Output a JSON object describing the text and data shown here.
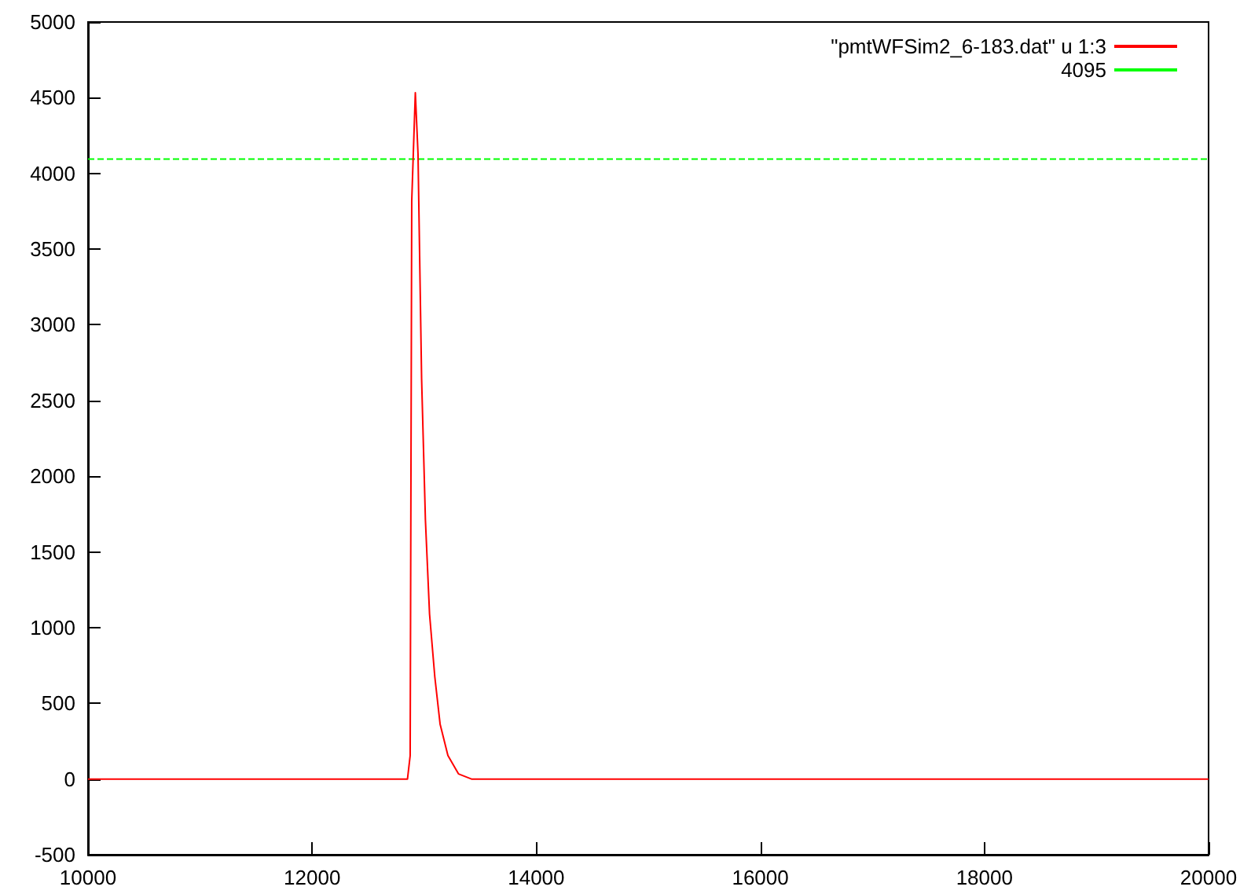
{
  "chart_data": {
    "type": "line",
    "series": [
      {
        "name": "\"pmtWFSim2_6-183.dat\" u 1:3",
        "color": "#ff0000",
        "x": [
          10000,
          10500,
          11000,
          11500,
          12000,
          12500,
          12851,
          12875,
          12889,
          12921,
          12945,
          12977,
          13011,
          13048,
          13095,
          13142,
          13212,
          13306,
          13422,
          14000,
          14500,
          15000,
          15500,
          16000,
          16500,
          17000,
          17500,
          18000,
          18500,
          19000,
          19500,
          20000
        ],
        "values": [
          0,
          0,
          0,
          0,
          0,
          0,
          0,
          155,
          3817,
          4533,
          4128,
          2645,
          1712,
          1089,
          674,
          363,
          155,
          34,
          0,
          0,
          0,
          0,
          0,
          0,
          0,
          0,
          0,
          0,
          0,
          0,
          0,
          0
        ]
      }
    ],
    "ref_lines": [
      {
        "axis": "y",
        "value": 4095,
        "label": "4095",
        "color": "#00ff00",
        "line_style": "dashed"
      }
    ],
    "xlim": [
      10000,
      20000
    ],
    "xticks": [
      10000,
      12000,
      14000,
      16000,
      18000,
      20000
    ],
    "ylim": [
      -500,
      5000
    ],
    "yticks": [
      -500,
      0,
      500,
      1000,
      1500,
      2000,
      2500,
      3000,
      3500,
      4000,
      4500,
      5000
    ],
    "grid": false,
    "legend": "top right",
    "marker": "none",
    "line_style": "solid"
  }
}
